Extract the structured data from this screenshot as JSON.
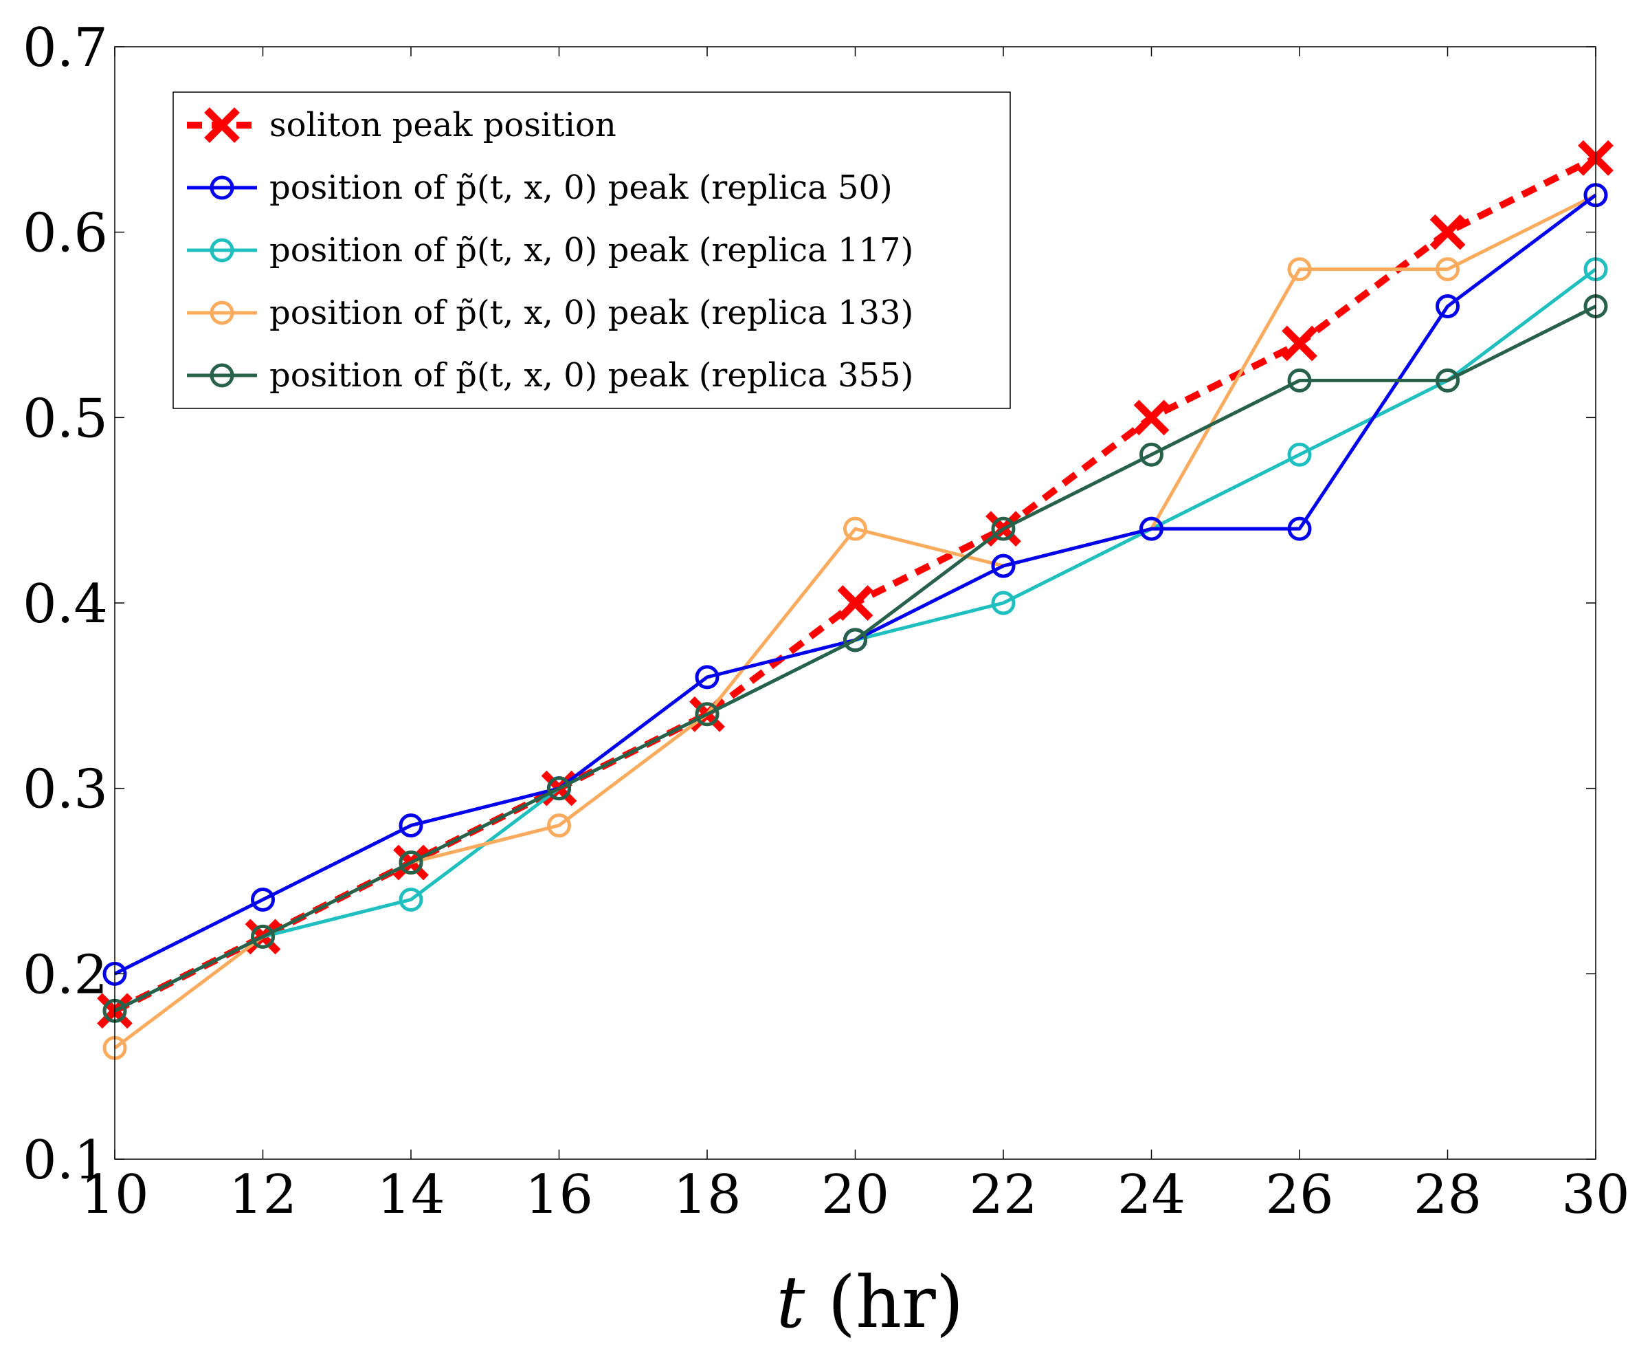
{
  "chart_data": {
    "type": "line",
    "title": "",
    "xlabel": "t (hr)",
    "ylabel": "",
    "xlim": [
      10,
      30
    ],
    "ylim": [
      0.1,
      0.7
    ],
    "xticks": [
      "10",
      "12",
      "14",
      "16",
      "18",
      "20",
      "22",
      "24",
      "26",
      "28",
      "30"
    ],
    "yticks": [
      "0.1",
      "0.2",
      "0.3",
      "0.4",
      "0.5",
      "0.6",
      "0.7"
    ],
    "legend_position": "top-left",
    "series": [
      {
        "name": "soliton peak position",
        "color": "#ff0000",
        "style": "dashed",
        "marker": "x",
        "x": [
          10,
          12,
          14,
          16,
          18,
          20,
          22,
          24,
          26,
          28,
          30
        ],
        "values": [
          0.18,
          0.22,
          0.26,
          0.3,
          0.34,
          0.4,
          0.44,
          0.5,
          0.54,
          0.6,
          0.64
        ]
      },
      {
        "name": "position of p̃(t, x, 0) peak (replica 50)",
        "color": "#0000ee",
        "style": "solid",
        "marker": "o",
        "x": [
          10,
          12,
          14,
          16,
          18,
          20,
          22,
          24,
          26,
          28,
          30
        ],
        "values": [
          0.2,
          0.24,
          0.28,
          0.3,
          0.36,
          0.38,
          0.42,
          0.44,
          0.44,
          0.56,
          0.62
        ]
      },
      {
        "name": "position of p̃(t, x, 0) peak (replica 117)",
        "color": "#1fbfbf",
        "style": "solid",
        "marker": "o",
        "x": [
          10,
          12,
          14,
          16,
          18,
          20,
          22,
          24,
          26,
          28,
          30
        ],
        "values": [
          0.18,
          0.22,
          0.24,
          0.3,
          0.34,
          0.38,
          0.4,
          0.44,
          0.48,
          0.52,
          0.58
        ]
      },
      {
        "name": "position of p̃(t, x, 0) peak (replica 133)",
        "color": "#fbab5e",
        "style": "solid",
        "marker": "o",
        "x": [
          10,
          12,
          14,
          16,
          18,
          20,
          22,
          24,
          26,
          28,
          30
        ],
        "values": [
          0.16,
          0.22,
          0.26,
          0.28,
          0.34,
          0.44,
          0.42,
          0.44,
          0.58,
          0.58,
          0.62
        ]
      },
      {
        "name": "position of p̃(t, x, 0) peak (replica 355)",
        "color": "#27614a",
        "style": "solid",
        "marker": "o",
        "x": [
          10,
          12,
          14,
          16,
          18,
          20,
          22,
          24,
          26,
          28,
          30
        ],
        "values": [
          0.18,
          0.22,
          0.26,
          0.3,
          0.34,
          0.38,
          0.44,
          0.48,
          0.52,
          0.52,
          0.56
        ]
      }
    ]
  }
}
